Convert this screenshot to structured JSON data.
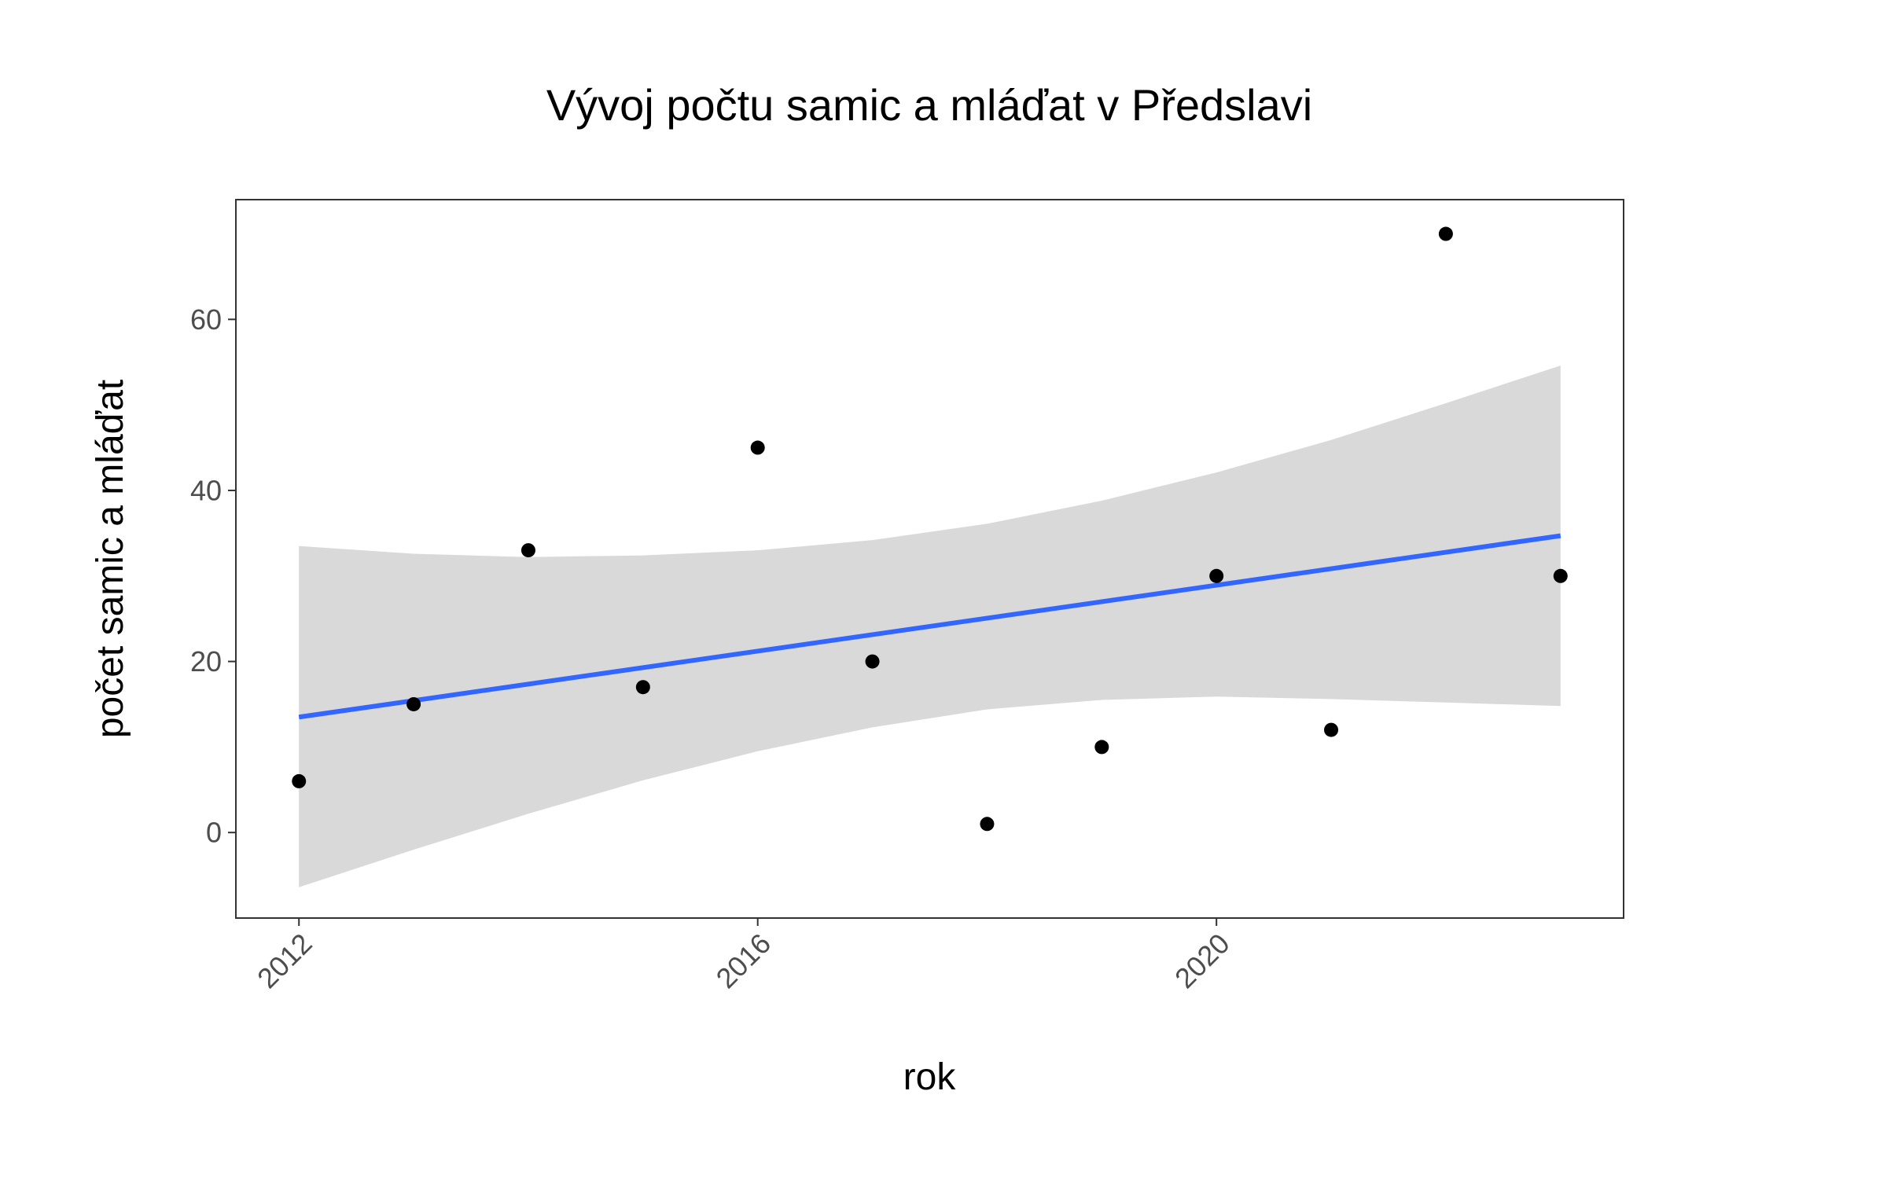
{
  "chart_data": {
    "type": "scatter",
    "title": "Vývoj počtu samic a mláďat v Předslavi",
    "xlabel": "rok",
    "ylabel": "počet samic a mláďat",
    "xlim": [
      2011.45,
      2023.55
    ],
    "ylim": [
      -10,
      74
    ],
    "x_ticks": [
      "2012",
      "2016",
      "2020"
    ],
    "y_ticks": [
      "0",
      "20",
      "40",
      "60"
    ],
    "grid": false,
    "legend": "none",
    "colors": {
      "points": "#000000",
      "trend_line": "#3366ff",
      "confidence_band": "#d9d9d9",
      "panel_border": "#333333"
    },
    "series": [
      {
        "x": [
          2012,
          2013,
          2014,
          2015,
          2016,
          2017,
          2018,
          2019,
          2020,
          2021,
          2022,
          2023
        ],
        "y": [
          6,
          15,
          33,
          17,
          45,
          20,
          1,
          10,
          30,
          12,
          70,
          30
        ]
      }
    ],
    "trend_line": {
      "x": [
        2012,
        2023
      ],
      "y": [
        13.5,
        34.7
      ]
    },
    "confidence_band": {
      "x": [
        2012,
        2013,
        2014,
        2015,
        2016,
        2017,
        2018,
        2019,
        2020,
        2021,
        2022,
        2023
      ],
      "lower": [
        -6.4,
        -2.0,
        2.2,
        6.1,
        9.5,
        12.3,
        14.4,
        15.5,
        15.9,
        15.6,
        15.2,
        14.8
      ],
      "upper": [
        33.5,
        32.6,
        32.2,
        32.4,
        33.0,
        34.2,
        36.1,
        38.8,
        42.1,
        45.9,
        50.2,
        54.6
      ]
    }
  }
}
